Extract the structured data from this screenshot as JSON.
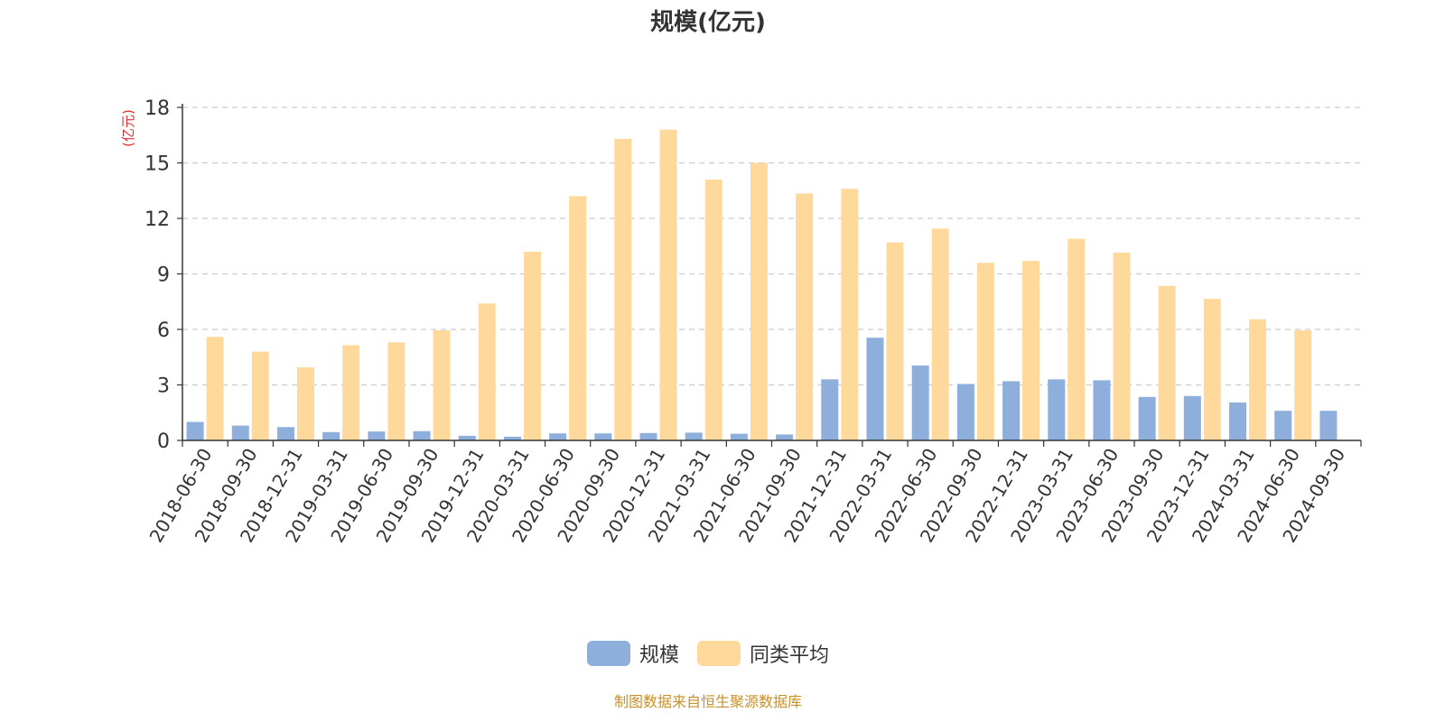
{
  "colors": {
    "series_0": "#8eaedb",
    "series_1": "#ffd99b",
    "y_unit": "#e03030",
    "source": "#c8902a"
  },
  "footer": {
    "source_text": "制图数据来自恒生聚源数据库"
  },
  "chart_data": {
    "type": "bar",
    "title": "规模(亿元)",
    "ylabel": "(亿元)",
    "xlabel": "",
    "ylim": [
      0,
      18
    ],
    "yticks": [
      0,
      3,
      6,
      9,
      12,
      15,
      18
    ],
    "grid": true,
    "legend_position": "bottom",
    "categories": [
      "2018-06-30",
      "2018-09-30",
      "2018-12-31",
      "2019-03-31",
      "2019-06-30",
      "2019-09-30",
      "2019-12-31",
      "2020-03-31",
      "2020-06-30",
      "2020-09-30",
      "2020-12-31",
      "2021-03-31",
      "2021-06-30",
      "2021-09-30",
      "2021-12-31",
      "2022-03-31",
      "2022-06-30",
      "2022-09-30",
      "2022-12-31",
      "2023-03-31",
      "2023-06-30",
      "2023-09-30",
      "2023-12-31",
      "2024-03-31",
      "2024-06-30",
      "2024-09-30"
    ],
    "series": [
      {
        "name": "规模",
        "values": [
          1.0,
          0.8,
          0.72,
          0.45,
          0.48,
          0.5,
          0.25,
          0.2,
          0.38,
          0.38,
          0.4,
          0.42,
          0.36,
          0.32,
          3.3,
          5.55,
          4.05,
          3.05,
          3.2,
          3.3,
          3.25,
          2.35,
          2.4,
          2.05,
          1.6,
          1.6
        ]
      },
      {
        "name": "同类平均",
        "values": [
          5.6,
          4.8,
          3.95,
          5.15,
          5.3,
          5.95,
          7.4,
          10.2,
          13.2,
          16.3,
          16.8,
          14.1,
          15.0,
          13.35,
          13.6,
          10.7,
          11.45,
          9.6,
          9.7,
          10.9,
          10.15,
          8.35,
          7.65,
          6.55,
          5.95,
          null
        ]
      }
    ]
  }
}
